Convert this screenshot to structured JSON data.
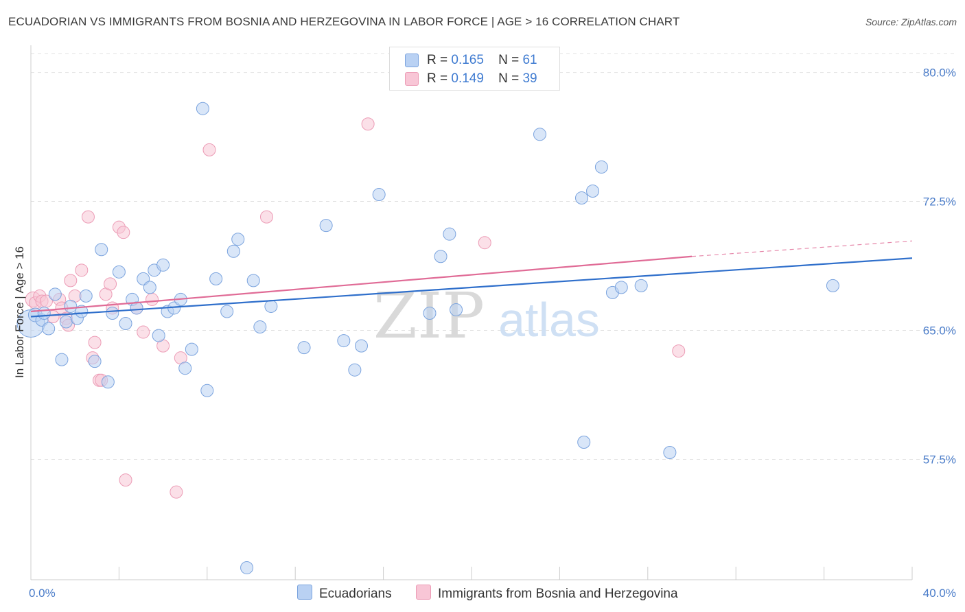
{
  "title": "ECUADORIAN VS IMMIGRANTS FROM BOSNIA AND HERZEGOVINA IN LABOR FORCE | AGE > 16 CORRELATION CHART",
  "source": "Source: ZipAtlas.com",
  "watermark": {
    "zip": "ZIP",
    "atlas": "atlas"
  },
  "legend": {
    "rows": [
      {
        "r_label": "R =",
        "r_value": "0.165",
        "n_label": "N =",
        "n_value": "61"
      },
      {
        "r_label": "R =",
        "r_value": "0.149",
        "n_label": "N =",
        "n_value": "39"
      }
    ]
  },
  "colors": {
    "series1_fill": "#b9d1f3",
    "series1_stroke": "#7aa3de",
    "series1_line": "#2f6fcb",
    "series2_fill": "#f8c6d6",
    "series2_stroke": "#ec9bb5",
    "series2_line": "#e06b96",
    "tick": "#4a7cc9",
    "grid": "#e0e0e0"
  },
  "chart_data": {
    "type": "scatter",
    "title": "ECUADORIAN VS IMMIGRANTS FROM BOSNIA AND HERZEGOVINA IN LABOR FORCE | AGE > 16 CORRELATION CHART",
    "xlabel": "",
    "ylabel": "In Labor Force | Age > 16",
    "xlim": [
      0,
      40
    ],
    "ylim": [
      50.5,
      81.1
    ],
    "x_tick_labels": [
      "0.0%",
      "40.0%"
    ],
    "y_ticks": [
      57.5,
      65.0,
      72.5,
      80.0
    ],
    "y_tick_labels": [
      "57.5%",
      "65.0%",
      "72.5%",
      "80.0%"
    ],
    "grid": true,
    "legend_position": "top-center",
    "series": [
      {
        "name": "Ecuadorians",
        "trend": {
          "x": [
            0,
            40
          ],
          "y": [
            65.8,
            69.2
          ]
        },
        "points": [
          [
            0.0,
            65.4,
            20
          ],
          [
            0.2,
            65.9,
            10
          ],
          [
            0.5,
            65.6,
            9
          ],
          [
            0.6,
            66.0,
            9
          ],
          [
            0.8,
            65.1,
            9
          ],
          [
            1.1,
            67.1,
            9
          ],
          [
            1.4,
            63.3,
            9
          ],
          [
            1.6,
            65.5,
            9
          ],
          [
            1.8,
            66.4,
            9
          ],
          [
            2.1,
            65.7,
            9
          ],
          [
            2.3,
            66.1,
            9
          ],
          [
            2.5,
            67.0,
            9
          ],
          [
            2.9,
            63.2,
            9
          ],
          [
            3.2,
            69.7,
            9
          ],
          [
            3.5,
            62.0,
            9
          ],
          [
            3.7,
            66.0,
            9
          ],
          [
            4.0,
            68.4,
            9
          ],
          [
            4.3,
            65.4,
            9
          ],
          [
            4.6,
            66.8,
            9
          ],
          [
            4.8,
            66.3,
            9
          ],
          [
            5.1,
            68.0,
            9
          ],
          [
            5.4,
            67.5,
            9
          ],
          [
            5.6,
            68.5,
            9
          ],
          [
            5.8,
            64.7,
            9
          ],
          [
            6.0,
            68.8,
            9
          ],
          [
            6.2,
            66.1,
            9
          ],
          [
            6.5,
            66.3,
            9
          ],
          [
            6.8,
            66.8,
            9
          ],
          [
            7.0,
            62.8,
            9
          ],
          [
            7.3,
            63.9,
            9
          ],
          [
            7.8,
            77.9,
            9
          ],
          [
            8.0,
            61.5,
            9
          ],
          [
            8.4,
            68.0,
            9
          ],
          [
            8.9,
            66.1,
            9
          ],
          [
            9.2,
            69.6,
            9
          ],
          [
            9.4,
            70.3,
            9
          ],
          [
            10.1,
            67.9,
            9
          ],
          [
            9.8,
            51.2,
            9
          ],
          [
            10.4,
            65.2,
            9
          ],
          [
            10.9,
            66.4,
            9
          ],
          [
            12.4,
            64.0,
            9
          ],
          [
            13.4,
            71.1,
            9
          ],
          [
            14.2,
            64.4,
            9
          ],
          [
            14.7,
            62.7,
            9
          ],
          [
            15.0,
            64.1,
            9
          ],
          [
            15.8,
            72.9,
            9
          ],
          [
            18.1,
            66.0,
            9
          ],
          [
            18.6,
            69.3,
            9
          ],
          [
            19.0,
            70.6,
            9
          ],
          [
            19.3,
            66.2,
            9
          ],
          [
            23.1,
            76.4,
            9
          ],
          [
            25.0,
            72.7,
            9
          ],
          [
            25.1,
            58.5,
            9
          ],
          [
            25.5,
            73.1,
            9
          ],
          [
            25.9,
            74.5,
            9
          ],
          [
            26.4,
            67.2,
            9
          ],
          [
            26.8,
            67.5,
            9
          ],
          [
            27.7,
            67.6,
            9
          ],
          [
            29.0,
            57.9,
            9
          ],
          [
            36.4,
            67.6,
            9
          ]
        ]
      },
      {
        "name": "Immigrants from Bosnia and Herzegovina",
        "trend": {
          "x": [
            0,
            30
          ],
          "y": [
            66.1,
            69.3
          ]
        },
        "trend_extension": {
          "x": [
            30,
            40
          ],
          "y": [
            69.3,
            70.2
          ]
        },
        "points": [
          [
            0.1,
            66.8,
            11
          ],
          [
            0.2,
            66.6,
            9
          ],
          [
            0.4,
            67.0,
            9
          ],
          [
            0.5,
            66.7,
            9
          ],
          [
            0.7,
            66.7,
            9
          ],
          [
            1.0,
            65.8,
            9
          ],
          [
            1.3,
            66.8,
            9
          ],
          [
            1.4,
            66.3,
            9
          ],
          [
            1.6,
            65.7,
            9
          ],
          [
            1.7,
            65.3,
            9
          ],
          [
            1.8,
            67.9,
            9
          ],
          [
            2.0,
            67.0,
            9
          ],
          [
            2.3,
            68.5,
            9
          ],
          [
            2.6,
            71.6,
            9
          ],
          [
            2.8,
            63.4,
            9
          ],
          [
            2.9,
            64.3,
            9
          ],
          [
            3.1,
            62.1,
            9
          ],
          [
            3.2,
            62.1,
            9
          ],
          [
            3.4,
            67.1,
            9
          ],
          [
            3.6,
            67.7,
            9
          ],
          [
            3.7,
            66.3,
            9
          ],
          [
            4.0,
            71.0,
            9
          ],
          [
            4.2,
            70.7,
            9
          ],
          [
            4.3,
            56.3,
            9
          ],
          [
            4.8,
            66.3,
            9
          ],
          [
            5.1,
            64.9,
            9
          ],
          [
            5.5,
            66.8,
            9
          ],
          [
            6.0,
            64.1,
            9
          ],
          [
            6.6,
            55.6,
            9
          ],
          [
            6.8,
            63.4,
            9
          ],
          [
            8.1,
            75.5,
            9
          ],
          [
            10.7,
            71.6,
            9
          ],
          [
            15.3,
            77.0,
            9
          ],
          [
            20.6,
            70.1,
            9
          ],
          [
            29.4,
            63.8,
            9
          ]
        ]
      }
    ]
  }
}
